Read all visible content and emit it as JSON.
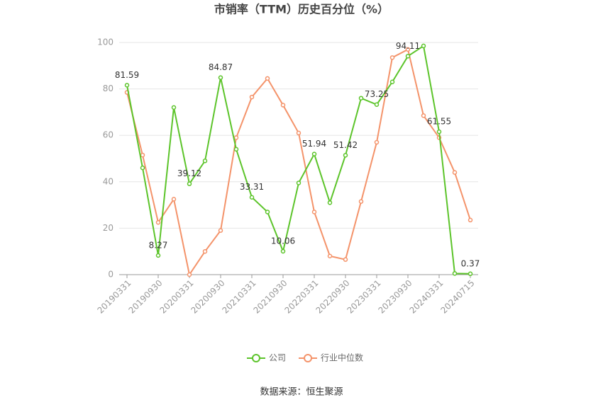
{
  "chart_data": {
    "type": "line",
    "title": "市销率（TTM）历史百分位（%）",
    "categories": [
      "20190331",
      null,
      "20190930",
      null,
      "20200331",
      null,
      "20200930",
      null,
      "20210331",
      null,
      "20210930",
      null,
      "20220331",
      null,
      "20220930",
      null,
      "20230331",
      null,
      "20230930",
      null,
      "20240331",
      null,
      "20240715"
    ],
    "series": [
      {
        "name": "公司",
        "color": "#5cc42a",
        "values": [
          81.59,
          46,
          8.27,
          72,
          39.12,
          49,
          84.87,
          54,
          33.31,
          27,
          10.06,
          39.5,
          51.94,
          31,
          51.42,
          76,
          73.25,
          83,
          94.11,
          98.5,
          61.55,
          0.5,
          0.37
        ],
        "value_labels": [
          "81.59",
          null,
          "8.27",
          null,
          "39.12",
          null,
          "84.87",
          null,
          "33.31",
          null,
          "10.06",
          null,
          "51.94",
          null,
          "51.42",
          null,
          "73.25",
          null,
          "94.11",
          null,
          "61.55",
          null,
          "0.37"
        ]
      },
      {
        "name": "行业中位数",
        "color": "#f4936a",
        "values": [
          78.5,
          51.5,
          22.5,
          32.5,
          0,
          10,
          19,
          59,
          76.5,
          84.5,
          73,
          61,
          27,
          8,
          6.5,
          31.5,
          57,
          93.5,
          97,
          68.5,
          59,
          44,
          23.5
        ]
      }
    ],
    "ylim": [
      0,
      100
    ],
    "yticks": [
      0,
      20,
      40,
      60,
      80,
      100
    ],
    "grid": true,
    "legend": "bottom",
    "source": "数据来源：恒生聚源"
  }
}
